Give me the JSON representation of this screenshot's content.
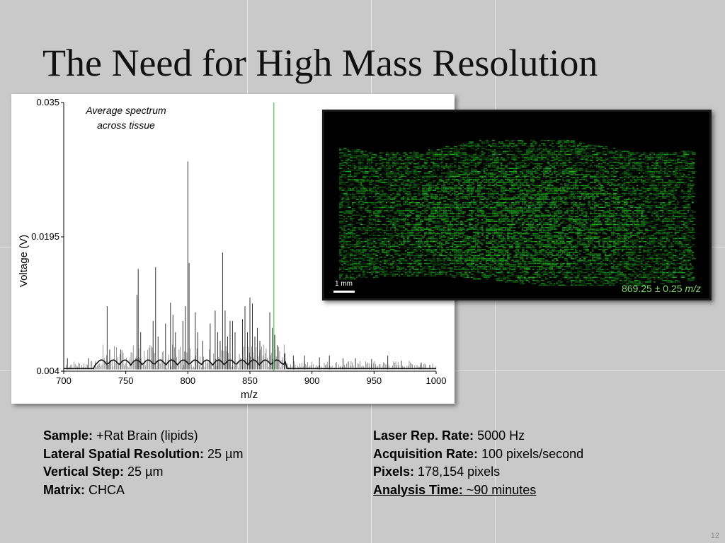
{
  "slide": {
    "title": "The Need for High Mass Resolution",
    "page_number": "12"
  },
  "chart_data": {
    "type": "line",
    "title": "",
    "annotation": "Average spectrum across tissue",
    "annotation_lines": [
      "Average spectrum",
      "across tissue"
    ],
    "xlabel": "m/z",
    "ylabel": "Voltage (V)",
    "xlim": [
      700,
      1000
    ],
    "ylim": [
      0.004,
      0.035
    ],
    "x_ticks": [
      700,
      750,
      800,
      850,
      900,
      950,
      1000
    ],
    "y_ticks": [
      0.004,
      0.0195,
      0.035
    ],
    "y_tick_labels": [
      "0.004",
      "0.0195",
      "0.035"
    ],
    "highlight_line": {
      "x": 869.25,
      "color": "#6fcf7a"
    },
    "series": [
      {
        "color": "#333333",
        "peaks": [
          {
            "x": 703,
            "y": 0.0055
          },
          {
            "x": 720,
            "y": 0.0055
          },
          {
            "x": 735,
            "y": 0.0115
          },
          {
            "x": 737,
            "y": 0.0065
          },
          {
            "x": 746,
            "y": 0.0065
          },
          {
            "x": 759,
            "y": 0.0128
          },
          {
            "x": 760,
            "y": 0.0158
          },
          {
            "x": 762,
            "y": 0.0085
          },
          {
            "x": 772,
            "y": 0.0098
          },
          {
            "x": 774,
            "y": 0.016
          },
          {
            "x": 776,
            "y": 0.008
          },
          {
            "x": 782,
            "y": 0.0095
          },
          {
            "x": 786,
            "y": 0.0119
          },
          {
            "x": 788,
            "y": 0.0105
          },
          {
            "x": 790,
            "y": 0.0085
          },
          {
            "x": 796,
            "y": 0.0098
          },
          {
            "x": 798,
            "y": 0.0115
          },
          {
            "x": 800,
            "y": 0.0282
          },
          {
            "x": 801,
            "y": 0.0165
          },
          {
            "x": 806,
            "y": 0.0108
          },
          {
            "x": 808,
            "y": 0.0085
          },
          {
            "x": 812,
            "y": 0.0075
          },
          {
            "x": 818,
            "y": 0.0095
          },
          {
            "x": 822,
            "y": 0.011
          },
          {
            "x": 824,
            "y": 0.0085
          },
          {
            "x": 826,
            "y": 0.0075
          },
          {
            "x": 828,
            "y": 0.0177
          },
          {
            "x": 830,
            "y": 0.011
          },
          {
            "x": 832,
            "y": 0.008
          },
          {
            "x": 834,
            "y": 0.0098
          },
          {
            "x": 836,
            "y": 0.0098
          },
          {
            "x": 838,
            "y": 0.0085
          },
          {
            "x": 844,
            "y": 0.01
          },
          {
            "x": 846,
            "y": 0.0115
          },
          {
            "x": 848,
            "y": 0.0085
          },
          {
            "x": 850,
            "y": 0.0125
          },
          {
            "x": 852,
            "y": 0.0118
          },
          {
            "x": 854,
            "y": 0.008
          },
          {
            "x": 856,
            "y": 0.009
          },
          {
            "x": 858,
            "y": 0.0075
          },
          {
            "x": 866,
            "y": 0.0108
          },
          {
            "x": 868,
            "y": 0.009
          },
          {
            "x": 870,
            "y": 0.0082
          },
          {
            "x": 872,
            "y": 0.007
          },
          {
            "x": 878,
            "y": 0.006
          },
          {
            "x": 885,
            "y": 0.0058
          },
          {
            "x": 894,
            "y": 0.0058
          },
          {
            "x": 906,
            "y": 0.0056
          },
          {
            "x": 914,
            "y": 0.0058
          },
          {
            "x": 925,
            "y": 0.0055
          },
          {
            "x": 935,
            "y": 0.0055
          },
          {
            "x": 948,
            "y": 0.0054
          },
          {
            "x": 961,
            "y": 0.0058
          },
          {
            "x": 972,
            "y": 0.0052
          },
          {
            "x": 988,
            "y": 0.005
          }
        ]
      }
    ]
  },
  "image_panel": {
    "scale_label": "1 mm",
    "mz_value": "869.25 ± 0.25",
    "mz_unit": "m/z"
  },
  "info_left": [
    {
      "label": "Sample:",
      "value": " +Rat Brain (lipids)"
    },
    {
      "label": "Lateral Spatial Resolution:",
      "value": " 25 µm"
    },
    {
      "label": "Vertical Step:",
      "value": " 25 µm"
    },
    {
      "label": "Matrix:",
      "value": " CHCA"
    }
  ],
  "info_right": [
    {
      "label": "Laser Rep. Rate:",
      "value": " 5000 Hz"
    },
    {
      "label": "Acquisition Rate:",
      "value": " 100 pixels/second"
    },
    {
      "label": "Pixels:",
      "value": " 178,154 pixels"
    },
    {
      "label": "Analysis Time:",
      "value": " ~90 minutes"
    }
  ]
}
